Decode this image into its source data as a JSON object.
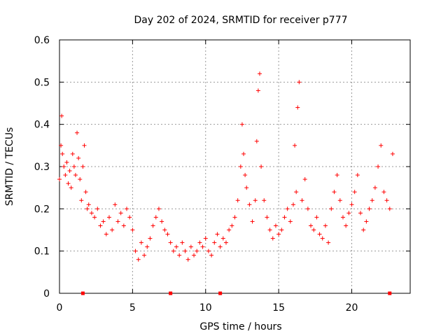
{
  "chart_data": {
    "type": "scatter",
    "title": "Day 202 of 2024, SRMTID for receiver p777",
    "xlabel": "GPS time / hours",
    "ylabel": "SRMTID / TECUs",
    "xlim": [
      0,
      24
    ],
    "ylim": [
      0,
      0.6
    ],
    "x_ticks": [
      0,
      5,
      10,
      15,
      20
    ],
    "y_ticks": [
      0,
      0.1,
      0.2,
      0.3,
      0.4,
      0.5,
      0.6
    ],
    "x_tick_labels": [
      "0",
      "5",
      "10",
      "15",
      "20"
    ],
    "y_tick_labels": [
      "0",
      "0.1",
      "0.2",
      "0.3",
      "0.4",
      "0.5",
      "0.6"
    ],
    "grid": true,
    "marker": "+",
    "color": "#ff0000",
    "series": [
      {
        "name": "SRMTID",
        "x": [
          0.0,
          0.1,
          0.15,
          0.2,
          0.3,
          0.4,
          0.5,
          0.6,
          0.7,
          0.8,
          0.9,
          1.0,
          1.1,
          1.2,
          1.3,
          1.4,
          1.5,
          1.6,
          1.7,
          1.8,
          1.9,
          2.0,
          2.2,
          2.4,
          2.6,
          2.8,
          3.0,
          3.2,
          3.4,
          3.6,
          3.8,
          4.0,
          4.2,
          4.4,
          4.6,
          4.8,
          5.0,
          5.2,
          5.4,
          5.6,
          5.8,
          6.0,
          6.2,
          6.4,
          6.6,
          6.8,
          7.0,
          7.2,
          7.4,
          7.6,
          7.8,
          8.0,
          8.2,
          8.4,
          8.6,
          8.8,
          9.0,
          9.2,
          9.4,
          9.6,
          9.8,
          10.0,
          10.2,
          10.4,
          10.6,
          10.8,
          11.0,
          11.2,
          11.4,
          11.6,
          11.8,
          12.0,
          12.2,
          12.4,
          12.5,
          12.6,
          12.7,
          12.8,
          13.0,
          13.2,
          13.4,
          13.5,
          13.6,
          13.7,
          13.8,
          14.0,
          14.2,
          14.4,
          14.6,
          14.8,
          15.0,
          15.2,
          15.4,
          15.6,
          15.8,
          16.0,
          16.1,
          16.2,
          16.3,
          16.4,
          16.6,
          16.8,
          17.0,
          17.2,
          17.4,
          17.6,
          17.8,
          18.0,
          18.2,
          18.4,
          18.6,
          18.8,
          19.0,
          19.2,
          19.4,
          19.6,
          19.8,
          20.0,
          20.2,
          20.4,
          20.6,
          20.8,
          21.0,
          21.2,
          21.4,
          21.6,
          21.8,
          22.0,
          22.2,
          22.4,
          22.6,
          22.8
        ],
        "y": [
          0.27,
          0.35,
          0.42,
          0.33,
          0.3,
          0.28,
          0.31,
          0.26,
          0.29,
          0.25,
          0.33,
          0.3,
          0.28,
          0.38,
          0.32,
          0.27,
          0.22,
          0.3,
          0.35,
          0.24,
          0.2,
          0.21,
          0.19,
          0.18,
          0.2,
          0.16,
          0.17,
          0.14,
          0.18,
          0.15,
          0.21,
          0.17,
          0.19,
          0.16,
          0.2,
          0.18,
          0.15,
          0.1,
          0.08,
          0.12,
          0.09,
          0.11,
          0.13,
          0.16,
          0.18,
          0.2,
          0.17,
          0.15,
          0.14,
          0.12,
          0.1,
          0.11,
          0.09,
          0.12,
          0.1,
          0.08,
          0.11,
          0.09,
          0.1,
          0.12,
          0.11,
          0.13,
          0.1,
          0.09,
          0.12,
          0.14,
          0.11,
          0.13,
          0.12,
          0.15,
          0.16,
          0.18,
          0.22,
          0.3,
          0.4,
          0.33,
          0.28,
          0.25,
          0.21,
          0.17,
          0.22,
          0.36,
          0.48,
          0.52,
          0.3,
          0.22,
          0.18,
          0.15,
          0.13,
          0.16,
          0.14,
          0.15,
          0.18,
          0.2,
          0.17,
          0.21,
          0.35,
          0.24,
          0.44,
          0.5,
          0.22,
          0.27,
          0.2,
          0.16,
          0.15,
          0.18,
          0.14,
          0.13,
          0.16,
          0.12,
          0.2,
          0.24,
          0.28,
          0.22,
          0.18,
          0.16,
          0.19,
          0.21,
          0.24,
          0.28,
          0.19,
          0.15,
          0.17,
          0.2,
          0.22,
          0.25,
          0.3,
          0.35,
          0.24,
          0.22,
          0.2,
          0.33
        ]
      }
    ],
    "baseline_markers_x": [
      1.6,
      7.6,
      11.0,
      22.6
    ]
  }
}
